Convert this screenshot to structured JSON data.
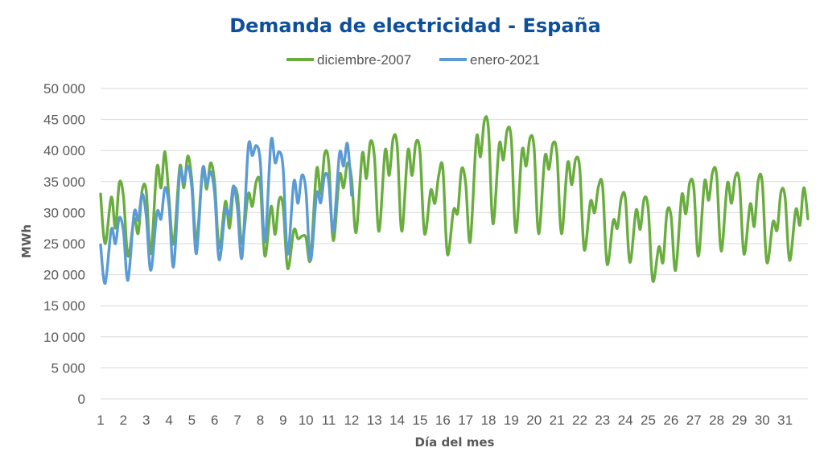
{
  "chart_data": {
    "type": "line",
    "title": "Demanda de electricidad - España",
    "xlabel": "Día del mes",
    "ylabel": "MWh",
    "ylim": [
      0,
      50000
    ],
    "xlim": [
      1,
      32
    ],
    "yticks": [
      "0",
      "5 000",
      "10 000",
      "15 000",
      "20 000",
      "25 000",
      "30 000",
      "35 000",
      "40 000",
      "45 000",
      "50 000"
    ],
    "xticks": [
      "1",
      "2",
      "3",
      "4",
      "5",
      "6",
      "7",
      "8",
      "9",
      "10",
      "11",
      "12",
      "13",
      "14",
      "15",
      "16",
      "17",
      "18",
      "19",
      "20",
      "21",
      "22",
      "23",
      "24",
      "25",
      "26",
      "27",
      "28",
      "29",
      "30",
      "31"
    ],
    "grid": true,
    "legend_position": "top",
    "colors": {
      "title": "#0d4f9a",
      "dic2007": "#6aad3f",
      "ene2021": "#5b9bd5",
      "grid": "#d9d9d9"
    },
    "series": [
      {
        "name": "diciembre-2007",
        "color": "#6aad3f",
        "daily_profile": [
          [
            1,
            33000,
            25000,
            32500,
            27500,
            34800
          ],
          [
            2,
            32600,
            23000,
            29000,
            26700,
            33600
          ],
          [
            3,
            33500,
            23400,
            37300,
            34000,
            39800
          ],
          [
            4,
            32200,
            25000,
            37400,
            34000,
            39100
          ],
          [
            5,
            35200,
            25500,
            36600,
            33800,
            38000
          ],
          [
            6,
            34700,
            24300,
            31800,
            27500,
            33500
          ],
          [
            7,
            32800,
            25000,
            33000,
            31000,
            35000
          ],
          [
            8,
            34500,
            23000,
            31000,
            26500,
            32000
          ],
          [
            9,
            31000,
            21000,
            27200,
            25800,
            26200
          ],
          [
            10,
            26000,
            22500,
            37000,
            33000,
            39500
          ],
          [
            11,
            38000,
            25500,
            36000,
            34000,
            38000
          ],
          [
            12,
            35500,
            26800,
            39500,
            35500,
            41400
          ],
          [
            13,
            39000,
            27000,
            40000,
            36000,
            41900
          ],
          [
            14,
            40800,
            27000,
            40000,
            36000,
            41300
          ],
          [
            15,
            39600,
            26600,
            33600,
            31500,
            36000
          ],
          [
            16,
            37200,
            23300,
            30400,
            30000,
            37000
          ],
          [
            17,
            34700,
            25300,
            42000,
            39000,
            44800
          ],
          [
            18,
            43500,
            28200,
            41000,
            38500,
            43300
          ],
          [
            19,
            41800,
            26800,
            40000,
            37500,
            42000
          ],
          [
            20,
            40500,
            26600,
            39000,
            37000,
            41100
          ],
          [
            21,
            39500,
            26600,
            38000,
            34500,
            38600
          ],
          [
            22,
            37100,
            24000,
            31800,
            30000,
            34200
          ],
          [
            23,
            34300,
            21700,
            28700,
            27500,
            32300
          ],
          [
            24,
            32300,
            22000,
            30400,
            27300,
            32200
          ],
          [
            25,
            30700,
            19000,
            24500,
            22000,
            30000
          ],
          [
            26,
            29500,
            20700,
            32800,
            29800,
            34800
          ],
          [
            27,
            34000,
            23000,
            35000,
            32000,
            36500
          ],
          [
            28,
            36000,
            23800,
            34700,
            31500,
            35800
          ],
          [
            29,
            35000,
            23300,
            31400,
            27800,
            35100
          ],
          [
            30,
            34800,
            22000,
            28500,
            27200,
            33300
          ],
          [
            31,
            32500,
            22300,
            30500,
            28000,
            34000
          ]
        ],
        "last_value": 29000
      },
      {
        "name": "enero-2021",
        "color": "#5b9bd5",
        "daily_profile": [
          [
            1,
            24800,
            18600,
            27300,
            25000,
            29200
          ],
          [
            2,
            27000,
            19100,
            30000,
            28800,
            33000
          ],
          [
            3,
            29500,
            20700,
            30000,
            29000,
            34000
          ],
          [
            4,
            31000,
            21300,
            36500,
            34800,
            37500
          ],
          [
            5,
            34000,
            23400,
            37000,
            34500,
            36600
          ],
          [
            6,
            33000,
            22400,
            30500,
            29500,
            34300
          ],
          [
            7,
            30700,
            22800,
            40500,
            39200,
            40800
          ],
          [
            8,
            38200,
            25300,
            41500,
            38000,
            39800
          ],
          [
            9,
            37200,
            23300,
            35000,
            31500,
            36000
          ],
          [
            10,
            33500,
            22300,
            33000,
            31600,
            36000
          ],
          [
            11,
            35000,
            27000,
            39500,
            37500,
            41100
          ]
        ],
        "last_value": 32800
      }
    ]
  }
}
